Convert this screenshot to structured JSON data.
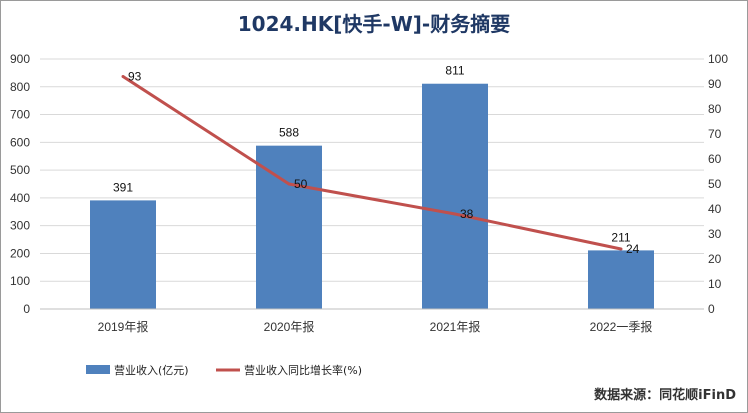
{
  "title": "1024.HK[快手-W]-财务摘要",
  "source": "数据来源：同花顺iFinD",
  "colors": {
    "bar": "#4f81bd",
    "line": "#c0504d",
    "grid": "#d9d9d9",
    "title": "#1f3864"
  },
  "chart_data": {
    "type": "bar",
    "title": "1024.HK[快手-W]-财务摘要",
    "categories": [
      "2019年报",
      "2020年报",
      "2021年报",
      "2022一季报"
    ],
    "series": [
      {
        "name": "营业收入(亿元)",
        "type": "bar",
        "axis": "left",
        "values": [
          391,
          588,
          811,
          211
        ]
      },
      {
        "name": "营业收入同比增长率(%)",
        "type": "line",
        "axis": "right",
        "values": [
          93,
          50,
          38,
          24
        ]
      }
    ],
    "y_left": {
      "min": 0,
      "max": 900,
      "step": 100,
      "ticks": [
        "0",
        "100",
        "200",
        "300",
        "400",
        "500",
        "600",
        "700",
        "800",
        "900"
      ]
    },
    "y_right": {
      "min": 0,
      "max": 100,
      "step": 10,
      "ticks": [
        "0",
        "10",
        "20",
        "30",
        "40",
        "50",
        "60",
        "70",
        "80",
        "90",
        "100"
      ]
    },
    "grid": true,
    "legend_position": "bottom-left"
  }
}
